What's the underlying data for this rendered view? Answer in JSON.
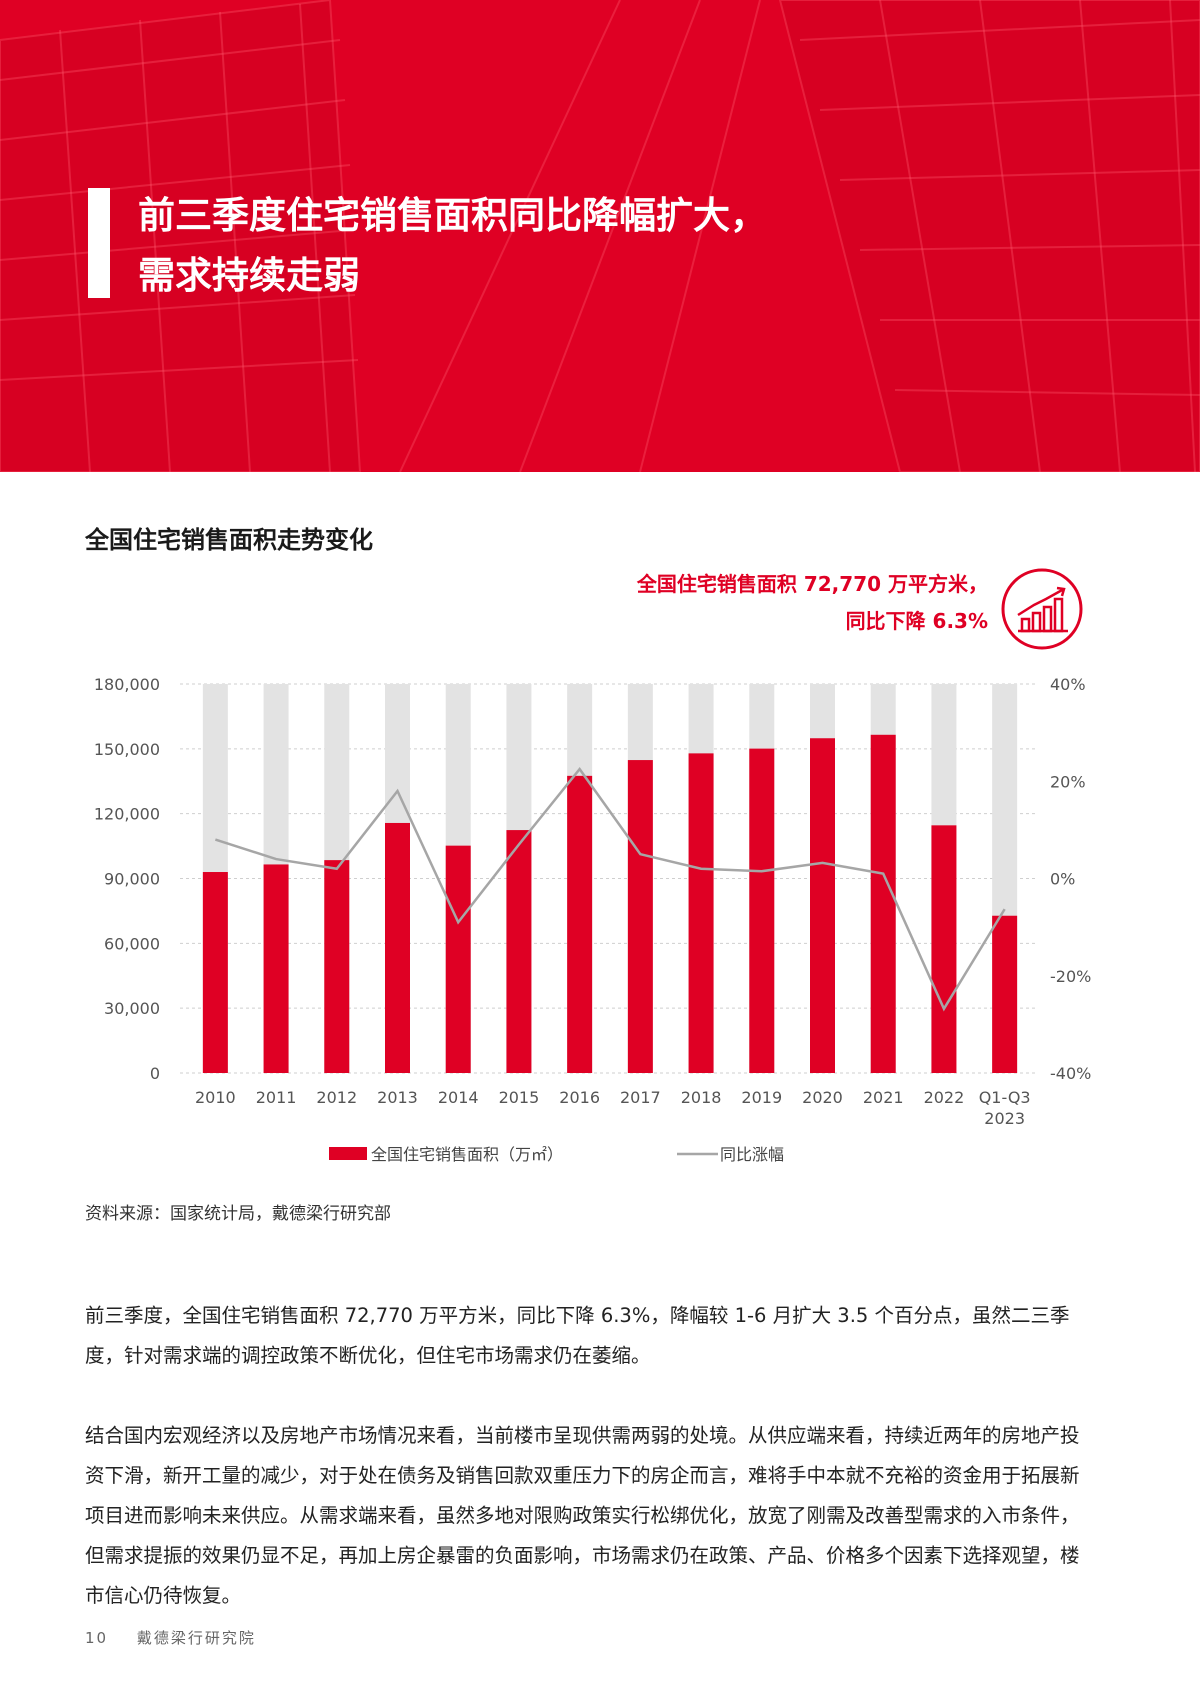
{
  "header": {
    "title_line1": "前三季度住宅销售面积同比降幅扩大，",
    "title_line2": "需求持续走弱"
  },
  "chart_section": {
    "title": "全国住宅销售面积走势变化",
    "callout_line1": "全国住宅销售面积 72,770 万平方米，",
    "callout_line2": "同比下降 6.3%",
    "callout_icon": "bar-chart-growth-icon"
  },
  "chart_data": {
    "type": "bar",
    "categories": [
      "2010",
      "2011",
      "2012",
      "2013",
      "2014",
      "2015",
      "2016",
      "2017",
      "2018",
      "2019",
      "2020",
      "2021",
      "2022",
      "Q1-Q3\n2023"
    ],
    "series": [
      {
        "name": "全国住宅销售面积（万㎡）",
        "type": "bar",
        "axis": "left",
        "values": [
          93000,
          96500,
          98500,
          115700,
          105200,
          112400,
          137500,
          144800,
          147900,
          150100,
          154900,
          156500,
          114600,
          72770
        ]
      },
      {
        "name": "同比涨幅",
        "type": "line",
        "axis": "right",
        "values": [
          8,
          4,
          2,
          18,
          -9,
          7,
          22.5,
          5,
          2,
          1.5,
          3.2,
          1,
          -26.8,
          -6.3
        ]
      }
    ],
    "left_axis": {
      "ticks": [
        "0",
        "30,000",
        "60,000",
        "90,000",
        "120,000",
        "150,000",
        "180,000"
      ],
      "ylim": [
        0,
        180000
      ]
    },
    "right_axis": {
      "ticks": [
        "-40%",
        "-20%",
        "0%",
        "20%",
        "40%"
      ],
      "ylim": [
        -40,
        40
      ]
    },
    "background_bar_max": 180000,
    "grid": "horizontal-dashed",
    "legend_position": "bottom",
    "colors": {
      "bar": "#df0024",
      "background_bar": "#e3e3e3",
      "line": "#a6a6a6"
    }
  },
  "source": "资料来源：国家统计局，戴德梁行研究部",
  "paragraphs": [
    "前三季度，全国住宅销售面积 72,770 万平方米，同比下降 6.3%，降幅较 1-6 月扩大 3.5 个百分点，虽然二三季度，针对需求端的调控政策不断优化，但住宅市场需求仍在萎缩。",
    "结合国内宏观经济以及房地产市场情况来看，当前楼市呈现供需两弱的处境。从供应端来看，持续近两年的房地产投资下滑，新开工量的减少，对于处在债务及销售回款双重压力下的房企而言，难将手中本就不充裕的资金用于拓展新项目进而影响未来供应。从需求端来看，虽然多地对限购政策实行松绑优化，放宽了刚需及改善型需求的入市条件，但需求提振的效果仍显不足，再加上房企暴雷的负面影响，市场需求仍在政策、产品、价格多个因素下选择观望，楼市信心仍待恢复。"
  ],
  "footer": {
    "page_number": "10",
    "publisher": "戴德梁行研究院"
  }
}
